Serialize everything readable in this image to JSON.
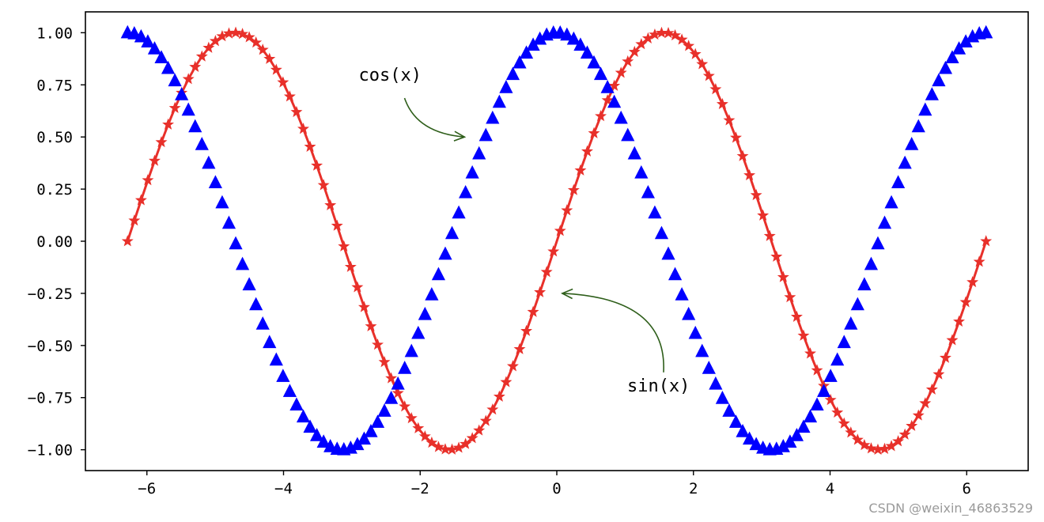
{
  "chart_data": {
    "type": "line",
    "title": "",
    "xlabel": "",
    "ylabel": "",
    "xlim": [
      -6.9,
      6.9
    ],
    "ylim": [
      -1.1,
      1.1
    ],
    "grid": false,
    "x_ticks": [
      -6,
      -4,
      -2,
      0,
      2,
      4,
      6
    ],
    "x_tick_labels": [
      "−6",
      "−4",
      "−2",
      "0",
      "2",
      "4",
      "6"
    ],
    "y_ticks": [
      1.0,
      0.75,
      0.5,
      0.25,
      0.0,
      -0.25,
      -0.5,
      -0.75,
      -1.0
    ],
    "y_tick_labels": [
      "1.00",
      "0.75",
      "0.50",
      "0.25",
      "0.00",
      "−0.25",
      "−0.50",
      "−0.75",
      "−1.00"
    ],
    "x_range": [
      -6.2832,
      6.2832
    ],
    "n_points": 128,
    "series": [
      {
        "function": "sin",
        "color": "#e8302a",
        "marker": "star",
        "line": "solid"
      },
      {
        "function": "cos",
        "color": "#0000ff",
        "marker": "triangle-up",
        "line": "none"
      }
    ],
    "annotations": [
      {
        "text": "cos(x)",
        "text_at": [
          -2.9,
          0.77
        ],
        "arrow_to": [
          -1.35,
          0.5
        ],
        "arrow_color": "#2e5e1a"
      },
      {
        "text": "sin(x)",
        "text_at": [
          1.03,
          -0.72
        ],
        "arrow_to": [
          0.08,
          -0.25
        ],
        "arrow_color": "#2e5e1a"
      }
    ]
  },
  "watermark": "CSDN @weixin_46863529"
}
